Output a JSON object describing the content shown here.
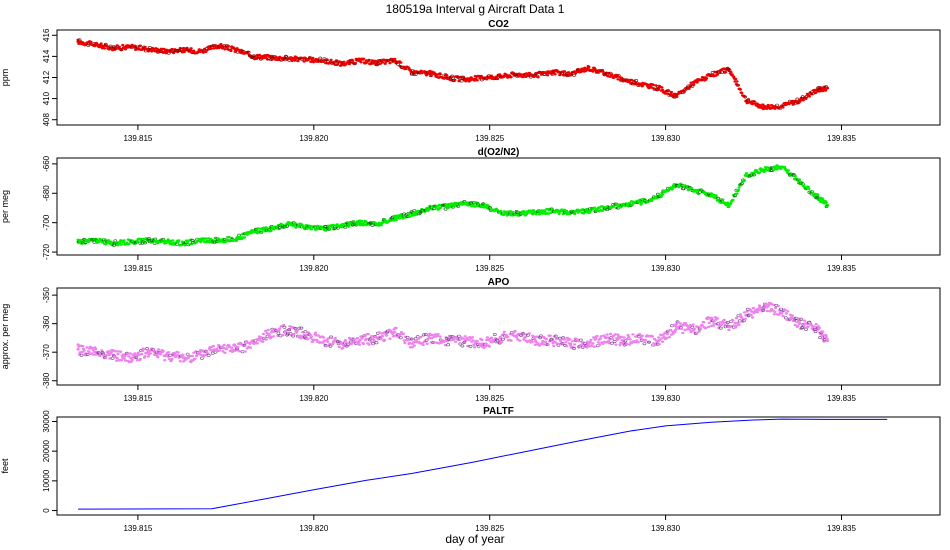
{
  "figure": {
    "title": "180519a   Interval g Aircraft Data 1",
    "xlabel": "day of year"
  },
  "chart_data": [
    {
      "type": "scatter",
      "title": "CO2",
      "ylabel": "ppm",
      "xlim": [
        139.8127,
        139.8378
      ],
      "ylim": [
        407.5,
        416.5
      ],
      "xticks": [
        139.815,
        139.82,
        139.825,
        139.83,
        139.835
      ],
      "xtick_labels": [
        "139.815",
        "139.820",
        "139.825",
        "139.830",
        "139.835"
      ],
      "yticks": [
        408,
        410,
        412,
        414,
        416
      ],
      "ytick_labels": [
        "408",
        "410",
        "412",
        "414",
        "416"
      ],
      "color": "#ee0000",
      "x": [
        139.8133,
        139.8138,
        139.8143,
        139.8148,
        139.8153,
        139.8158,
        139.8163,
        139.8168,
        139.8173,
        139.8178,
        139.8183,
        139.8188,
        139.8193,
        139.8198,
        139.8203,
        139.8208,
        139.8213,
        139.8218,
        139.8223,
        139.8228,
        139.8233,
        139.8238,
        139.8243,
        139.8248,
        139.8253,
        139.8258,
        139.8263,
        139.8268,
        139.8273,
        139.8278,
        139.8283,
        139.8288,
        139.8293,
        139.8298,
        139.8303,
        139.8308,
        139.8313,
        139.8318,
        139.8323,
        139.8328,
        139.8333,
        139.8338,
        139.8343,
        139.8346
      ],
      "values": [
        415.4,
        415.1,
        414.8,
        414.9,
        414.7,
        414.5,
        414.6,
        414.5,
        415.0,
        414.6,
        414.0,
        413.9,
        413.8,
        413.7,
        413.6,
        413.3,
        413.6,
        413.4,
        413.6,
        412.5,
        412.4,
        412.0,
        411.8,
        412.0,
        412.1,
        412.3,
        412.2,
        412.5,
        412.3,
        412.9,
        412.4,
        411.8,
        411.4,
        411.0,
        410.2,
        411.5,
        412.2,
        412.8,
        409.8,
        409.2,
        409.3,
        409.8,
        410.8,
        411.0
      ]
    },
    {
      "type": "scatter",
      "title": "d(O2/N2)",
      "ylabel": "per meg",
      "xlim": [
        139.8127,
        139.8378
      ],
      "ylim": [
        -722,
        -656
      ],
      "xticks": [
        139.815,
        139.82,
        139.825,
        139.83,
        139.835
      ],
      "xtick_labels": [
        "139.815",
        "139.820",
        "139.825",
        "139.830",
        "139.835"
      ],
      "yticks": [
        -720,
        -700,
        -680,
        -660
      ],
      "ytick_labels": [
        "-720",
        "-700",
        "-680",
        "-660"
      ],
      "color": "#00ee00",
      "x": [
        139.8133,
        139.8138,
        139.8143,
        139.8148,
        139.8153,
        139.8158,
        139.8163,
        139.8168,
        139.8173,
        139.8178,
        139.8183,
        139.8188,
        139.8193,
        139.8198,
        139.8203,
        139.8208,
        139.8213,
        139.8218,
        139.8223,
        139.8228,
        139.8233,
        139.8238,
        139.8243,
        139.8248,
        139.8253,
        139.8258,
        139.8263,
        139.8268,
        139.8273,
        139.8278,
        139.8283,
        139.8288,
        139.8293,
        139.8298,
        139.8303,
        139.8308,
        139.8313,
        139.8318,
        139.8323,
        139.8328,
        139.8333,
        139.8338,
        139.8343,
        139.8346
      ],
      "values": [
        -713,
        -712,
        -714,
        -713,
        -712,
        -713,
        -714,
        -712,
        -712,
        -711,
        -706,
        -704,
        -701,
        -703,
        -704,
        -702,
        -700,
        -701,
        -697,
        -694,
        -690,
        -689,
        -687,
        -688,
        -693,
        -694,
        -693,
        -692,
        -693,
        -692,
        -690,
        -688,
        -686,
        -682,
        -674,
        -678,
        -681,
        -688,
        -668,
        -664,
        -662,
        -672,
        -682,
        -688
      ]
    },
    {
      "type": "scatter",
      "title": "APO",
      "ylabel": "approx. per meg",
      "xlim": [
        139.8127,
        139.8378
      ],
      "ylim": [
        -381.5,
        -347.5
      ],
      "xticks": [
        139.815,
        139.82,
        139.825,
        139.83,
        139.835
      ],
      "xtick_labels": [
        "139.815",
        "139.820",
        "139.825",
        "139.830",
        "139.835"
      ],
      "yticks": [
        -380,
        -370,
        -360,
        -350
      ],
      "ytick_labels": [
        "-380",
        "-370",
        "-360",
        "-350"
      ],
      "color": "#ee82ee",
      "x": [
        139.8133,
        139.8138,
        139.8143,
        139.8148,
        139.8153,
        139.8158,
        139.8163,
        139.8168,
        139.8173,
        139.8178,
        139.8183,
        139.8188,
        139.8193,
        139.8198,
        139.8203,
        139.8208,
        139.8213,
        139.8218,
        139.8223,
        139.8228,
        139.8233,
        139.8238,
        139.8243,
        139.8248,
        139.8253,
        139.8258,
        139.8263,
        139.8268,
        139.8273,
        139.8278,
        139.8283,
        139.8288,
        139.8293,
        139.8298,
        139.8303,
        139.8308,
        139.8313,
        139.8318,
        139.8323,
        139.8328,
        139.8333,
        139.8338,
        139.8343,
        139.8346
      ],
      "values": [
        -369,
        -370,
        -371,
        -372,
        -370,
        -371,
        -372,
        -371,
        -368,
        -369,
        -367,
        -363,
        -362,
        -364,
        -366,
        -367,
        -366,
        -365,
        -363,
        -367,
        -365,
        -366,
        -366,
        -367,
        -365,
        -364,
        -366,
        -366,
        -367,
        -367,
        -365,
        -366,
        -365,
        -366,
        -361,
        -362,
        -359,
        -361,
        -357,
        -354,
        -356,
        -360,
        -362,
        -366
      ]
    },
    {
      "type": "line",
      "title": "PALTF",
      "ylabel": "feet",
      "xlim": [
        139.8127,
        139.8378
      ],
      "ylim": [
        -1500,
        31500
      ],
      "xticks": [
        139.815,
        139.82,
        139.825,
        139.83,
        139.835
      ],
      "xtick_labels": [
        "139.815",
        "139.820",
        "139.825",
        "139.830",
        "139.835"
      ],
      "yticks": [
        0,
        10000,
        20000,
        30000
      ],
      "ytick_labels": [
        "0",
        "10000",
        "20000",
        "30000"
      ],
      "color": "#0000ff",
      "x": [
        139.8133,
        139.8171,
        139.8185,
        139.82,
        139.8215,
        139.8228,
        139.8245,
        139.826,
        139.8275,
        139.829,
        139.83,
        139.8313,
        139.8325,
        139.8333,
        139.8345,
        139.8363
      ],
      "values": [
        500,
        600,
        3700,
        7000,
        10200,
        12500,
        16200,
        19800,
        23400,
        26800,
        28500,
        29700,
        30500,
        30800,
        30700,
        30700
      ]
    }
  ]
}
